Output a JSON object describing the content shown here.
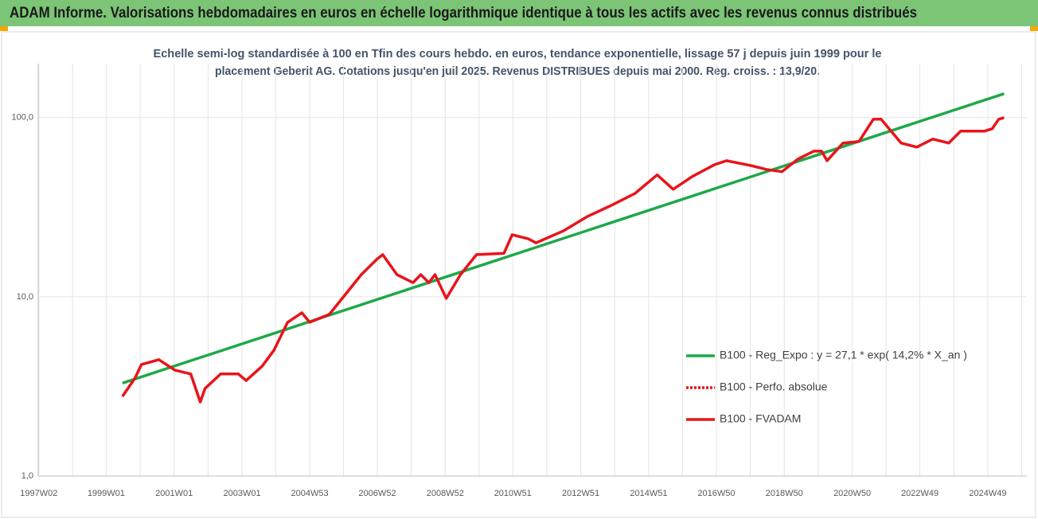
{
  "chart_data": {
    "type": "line",
    "title": "ADAM Informe. Valorisations hebdomadaires en euros en échelle logarithmique identique à tous les actifs avec les revenus connus distribués",
    "subtitle": [
      "Echelle semi-log standardisée à 100 en Tfin des cours hebdo. en euros, tendance exponentielle, lissage 57 j depuis juin 1999 pour le",
      "placement Geberit AG. Cotations jusqu'en juil 2025. Revenus DISTRIBUES depuis mai 2000. Reg. croiss. : 13,9/20."
    ],
    "log_scale": true,
    "grid": true,
    "legend": "right",
    "xlim": [
      1997.0,
      2026.1
    ],
    "xticks": [
      {
        "value": 1997.02,
        "label": "1997W02"
      },
      {
        "value": 1999.0,
        "label": "1999W01"
      },
      {
        "value": 2001.0,
        "label": "2001W01"
      },
      {
        "value": 2003.0,
        "label": "2003W01"
      },
      {
        "value": 2004.99,
        "label": "2004W53"
      },
      {
        "value": 2006.98,
        "label": "2006W52"
      },
      {
        "value": 2008.98,
        "label": "2008W52"
      },
      {
        "value": 2010.97,
        "label": "2010W51"
      },
      {
        "value": 2012.97,
        "label": "2012W51"
      },
      {
        "value": 2014.97,
        "label": "2014W51"
      },
      {
        "value": 2016.96,
        "label": "2016W50"
      },
      {
        "value": 2018.96,
        "label": "2018W50"
      },
      {
        "value": 2020.96,
        "label": "2020W50"
      },
      {
        "value": 2022.95,
        "label": "2022W49"
      },
      {
        "value": 2024.95,
        "label": "2024W49"
      }
    ],
    "ylim": [
      1,
      200
    ],
    "yticks": [
      {
        "value": 1,
        "label": "1,0"
      },
      {
        "value": 10,
        "label": "10,0"
      },
      {
        "value": 100,
        "label": "100,0"
      }
    ],
    "series": [
      {
        "name": "B100 - Reg_Expo : y = 27,1 * exp( 14,2% *  X_an )",
        "color": "#1fa84a",
        "dash": "solid",
        "x": [
          1999.48,
          2025.43
        ],
        "values": [
          3.3,
          136
        ]
      },
      {
        "name": "B100 - Perfo. absolue",
        "color": "#e8141b",
        "dash": "dotted",
        "x": [],
        "values": []
      },
      {
        "name": "B100 - FVADAM",
        "color": "#e8141b",
        "dash": "solid",
        "x": [
          1999.48,
          1999.85,
          2000.04,
          2000.55,
          2001.02,
          2001.49,
          2001.77,
          2001.91,
          2002.37,
          2002.89,
          2003.12,
          2003.59,
          2003.94,
          2004.34,
          2004.76,
          2004.99,
          2005.57,
          2006.04,
          2006.51,
          2006.98,
          2007.14,
          2007.56,
          2008.03,
          2008.26,
          2008.5,
          2008.68,
          2009.01,
          2009.43,
          2009.9,
          2010.71,
          2010.95,
          2011.42,
          2011.65,
          2012.47,
          2013.17,
          2013.87,
          2014.57,
          2015.22,
          2015.69,
          2016.25,
          2016.91,
          2017.26,
          2017.96,
          2018.43,
          2018.89,
          2019.36,
          2019.83,
          2020.06,
          2020.22,
          2020.69,
          2021.16,
          2021.58,
          2021.81,
          2022.4,
          2022.86,
          2023.33,
          2023.8,
          2024.15,
          2024.85,
          2025.08,
          2025.27,
          2025.43
        ],
        "values": [
          2.78,
          3.52,
          4.19,
          4.46,
          3.9,
          3.71,
          2.59,
          3.08,
          3.71,
          3.71,
          3.41,
          4.1,
          5.04,
          7.21,
          8.15,
          7.21,
          7.98,
          10.3,
          13.3,
          16.3,
          17.2,
          13.3,
          12.0,
          13.3,
          12.0,
          13.3,
          9.8,
          13.3,
          17.2,
          17.5,
          22.2,
          21.1,
          20.0,
          23.4,
          28.1,
          32.4,
          37.8,
          47.9,
          39.8,
          46.9,
          54.7,
          57.5,
          54.1,
          51.4,
          49.9,
          58.7,
          65.0,
          65.0,
          57.5,
          72.1,
          73.6,
          97.9,
          97.9,
          72.1,
          68.5,
          75.9,
          72.1,
          84.0,
          84.0,
          86.7,
          97.9,
          100
        ]
      }
    ]
  }
}
